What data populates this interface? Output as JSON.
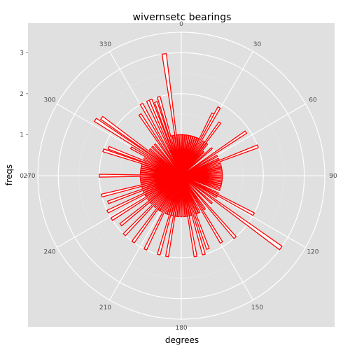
{
  "chart_data": {
    "type": "bar",
    "coordinates": "polar",
    "title": "wivernsetc bearings",
    "xlabel": "degrees",
    "ylabel": "freqs",
    "theta_ticks": [
      "0",
      "30",
      "60",
      "90",
      "120",
      "150",
      "180",
      "210",
      "240",
      "270",
      "300",
      "330"
    ],
    "r_ticks": [
      "0",
      "1",
      "2",
      "3"
    ],
    "rlim": [
      0,
      3.5
    ],
    "grid": true,
    "background": "#e0e0e0",
    "bar_color": "#ff0000",
    "bar_fill": "#ffffff",
    "bars": [
      {
        "deg": 0,
        "freq": 1
      },
      {
        "deg": 3,
        "freq": 1
      },
      {
        "deg": 6,
        "freq": 1
      },
      {
        "deg": 9,
        "freq": 1
      },
      {
        "deg": 12,
        "freq": 1
      },
      {
        "deg": 15,
        "freq": 1
      },
      {
        "deg": 18,
        "freq": 1
      },
      {
        "deg": 21,
        "freq": 1
      },
      {
        "deg": 24,
        "freq": 1
      },
      {
        "deg": 27,
        "freq": 1.7
      },
      {
        "deg": 29,
        "freq": 1.9
      },
      {
        "deg": 33,
        "freq": 1
      },
      {
        "deg": 36,
        "freq": 1.6
      },
      {
        "deg": 39,
        "freq": 1
      },
      {
        "deg": 43,
        "freq": 0.8
      },
      {
        "deg": 48,
        "freq": 1
      },
      {
        "deg": 56,
        "freq": 1.9
      },
      {
        "deg": 61,
        "freq": 1
      },
      {
        "deg": 66,
        "freq": 1
      },
      {
        "deg": 69,
        "freq": 2
      },
      {
        "deg": 73,
        "freq": 1
      },
      {
        "deg": 77,
        "freq": 1
      },
      {
        "deg": 80,
        "freq": 1
      },
      {
        "deg": 82,
        "freq": 1
      },
      {
        "deg": 84,
        "freq": 1
      },
      {
        "deg": 86,
        "freq": 1
      },
      {
        "deg": 88,
        "freq": 1
      },
      {
        "deg": 90,
        "freq": 1
      },
      {
        "deg": 92,
        "freq": 1
      },
      {
        "deg": 94,
        "freq": 1
      },
      {
        "deg": 96,
        "freq": 1
      },
      {
        "deg": 98,
        "freq": 1
      },
      {
        "deg": 100,
        "freq": 1
      },
      {
        "deg": 103,
        "freq": 1
      },
      {
        "deg": 106,
        "freq": 1
      },
      {
        "deg": 110,
        "freq": 1
      },
      {
        "deg": 116,
        "freq": 1
      },
      {
        "deg": 118,
        "freq": 2
      },
      {
        "deg": 121,
        "freq": 1
      },
      {
        "deg": 126,
        "freq": 3
      },
      {
        "deg": 132,
        "freq": 1
      },
      {
        "deg": 139,
        "freq": 2
      },
      {
        "deg": 145,
        "freq": 1
      },
      {
        "deg": 149,
        "freq": 1.9
      },
      {
        "deg": 154,
        "freq": 1
      },
      {
        "deg": 157,
        "freq": 1
      },
      {
        "deg": 160,
        "freq": 1.9
      },
      {
        "deg": 164,
        "freq": 2
      },
      {
        "deg": 167,
        "freq": 1
      },
      {
        "deg": 170,
        "freq": 2
      },
      {
        "deg": 173,
        "freq": 1
      },
      {
        "deg": 176,
        "freq": 1
      },
      {
        "deg": 180,
        "freq": 1
      },
      {
        "deg": 184,
        "freq": 1
      },
      {
        "deg": 187,
        "freq": 1
      },
      {
        "deg": 190,
        "freq": 2
      },
      {
        "deg": 193,
        "freq": 1
      },
      {
        "deg": 196,
        "freq": 2
      },
      {
        "deg": 199,
        "freq": 1
      },
      {
        "deg": 202,
        "freq": 1
      },
      {
        "deg": 206,
        "freq": 2
      },
      {
        "deg": 210,
        "freq": 1
      },
      {
        "deg": 213,
        "freq": 1
      },
      {
        "deg": 216,
        "freq": 2
      },
      {
        "deg": 220,
        "freq": 1
      },
      {
        "deg": 224,
        "freq": 2
      },
      {
        "deg": 228,
        "freq": 1
      },
      {
        "deg": 231,
        "freq": 1.9
      },
      {
        "deg": 234,
        "freq": 1
      },
      {
        "deg": 238,
        "freq": 2
      },
      {
        "deg": 241,
        "freq": 1
      },
      {
        "deg": 244,
        "freq": 2
      },
      {
        "deg": 247,
        "freq": 1
      },
      {
        "deg": 250,
        "freq": 1.9
      },
      {
        "deg": 253,
        "freq": 1
      },
      {
        "deg": 256,
        "freq": 2
      },
      {
        "deg": 259,
        "freq": 1
      },
      {
        "deg": 262,
        "freq": 1
      },
      {
        "deg": 265,
        "freq": 1
      },
      {
        "deg": 268,
        "freq": 1
      },
      {
        "deg": 270,
        "freq": 2
      },
      {
        "deg": 273,
        "freq": 1
      },
      {
        "deg": 276,
        "freq": 1
      },
      {
        "deg": 279,
        "freq": 1
      },
      {
        "deg": 282,
        "freq": 1
      },
      {
        "deg": 285,
        "freq": 1
      },
      {
        "deg": 288,
        "freq": 2
      },
      {
        "deg": 291,
        "freq": 1.9
      },
      {
        "deg": 295,
        "freq": 1
      },
      {
        "deg": 299,
        "freq": 1.4
      },
      {
        "deg": 303,
        "freq": 2.5
      },
      {
        "deg": 306,
        "freq": 2.4
      },
      {
        "deg": 310,
        "freq": 1
      },
      {
        "deg": 315,
        "freq": 1
      },
      {
        "deg": 320,
        "freq": 1
      },
      {
        "deg": 326,
        "freq": 1.8
      },
      {
        "deg": 331,
        "freq": 2
      },
      {
        "deg": 336,
        "freq": 2
      },
      {
        "deg": 338,
        "freq": 2
      },
      {
        "deg": 341,
        "freq": 1.9
      },
      {
        "deg": 344,
        "freq": 2
      },
      {
        "deg": 346,
        "freq": 1
      },
      {
        "deg": 349,
        "freq": 1
      },
      {
        "deg": 352,
        "freq": 3
      },
      {
        "deg": 355,
        "freq": 1
      },
      {
        "deg": 358,
        "freq": 1
      }
    ]
  }
}
